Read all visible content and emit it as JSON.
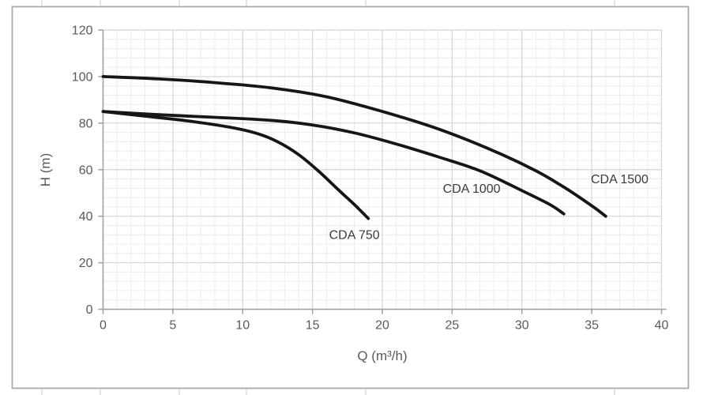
{
  "chart_data": {
    "type": "line",
    "title": "",
    "xlabel": "Q (m³/h)",
    "ylabel": "H (m)",
    "xlim": [
      0,
      40
    ],
    "ylim": [
      0,
      120
    ],
    "x_ticks": [
      0,
      5,
      10,
      15,
      20,
      25,
      30,
      35,
      40
    ],
    "y_ticks": [
      0,
      20,
      40,
      60,
      80,
      100,
      120
    ],
    "x_major_step": 5,
    "x_minor_step": 1,
    "y_major_step": 20,
    "y_minor_step": 4,
    "grid": "major and minor gridlines on, graph-paper style",
    "legend_position": "inline curve labels",
    "series": [
      {
        "name": "CDA 1500",
        "points": [
          [
            0,
            100
          ],
          [
            4,
            99
          ],
          [
            8,
            97.4
          ],
          [
            12,
            95.2
          ],
          [
            16,
            91.3
          ],
          [
            20,
            85
          ],
          [
            24,
            77.5
          ],
          [
            28,
            68
          ],
          [
            31,
            59.5
          ],
          [
            33,
            52.5
          ],
          [
            35,
            44.5
          ],
          [
            36,
            40
          ]
        ],
        "label_pos": [
          37,
          56
        ]
      },
      {
        "name": "CDA 1000",
        "points": [
          [
            0,
            85
          ],
          [
            4,
            83.6
          ],
          [
            8,
            82.5
          ],
          [
            12,
            81.2
          ],
          [
            15,
            79.2
          ],
          [
            18,
            75.8
          ],
          [
            21,
            71
          ],
          [
            24,
            65.5
          ],
          [
            27,
            59.5
          ],
          [
            30,
            51
          ],
          [
            32,
            45
          ],
          [
            33,
            41
          ]
        ],
        "label_pos": [
          26.4,
          52
        ]
      },
      {
        "name": "CDA 750",
        "points": [
          [
            0,
            85
          ],
          [
            3,
            83
          ],
          [
            6,
            81
          ],
          [
            9,
            78.3
          ],
          [
            11,
            75.6
          ],
          [
            12.5,
            72
          ],
          [
            14,
            66.5
          ],
          [
            15.5,
            59
          ],
          [
            17,
            50.5
          ],
          [
            18,
            45
          ],
          [
            19,
            39
          ]
        ],
        "label_pos": [
          18,
          32
        ]
      }
    ],
    "colors": {
      "curve": "#161616",
      "axis": "#9f9f9f",
      "grid_major": "#d4d4d4",
      "grid_minor": "#ececec",
      "tick_text": "#595959",
      "label_text": "#3c3c3c",
      "border": "#a9a9a9",
      "edge_marks": "#d9d9d9",
      "background": "#ffffff"
    }
  }
}
